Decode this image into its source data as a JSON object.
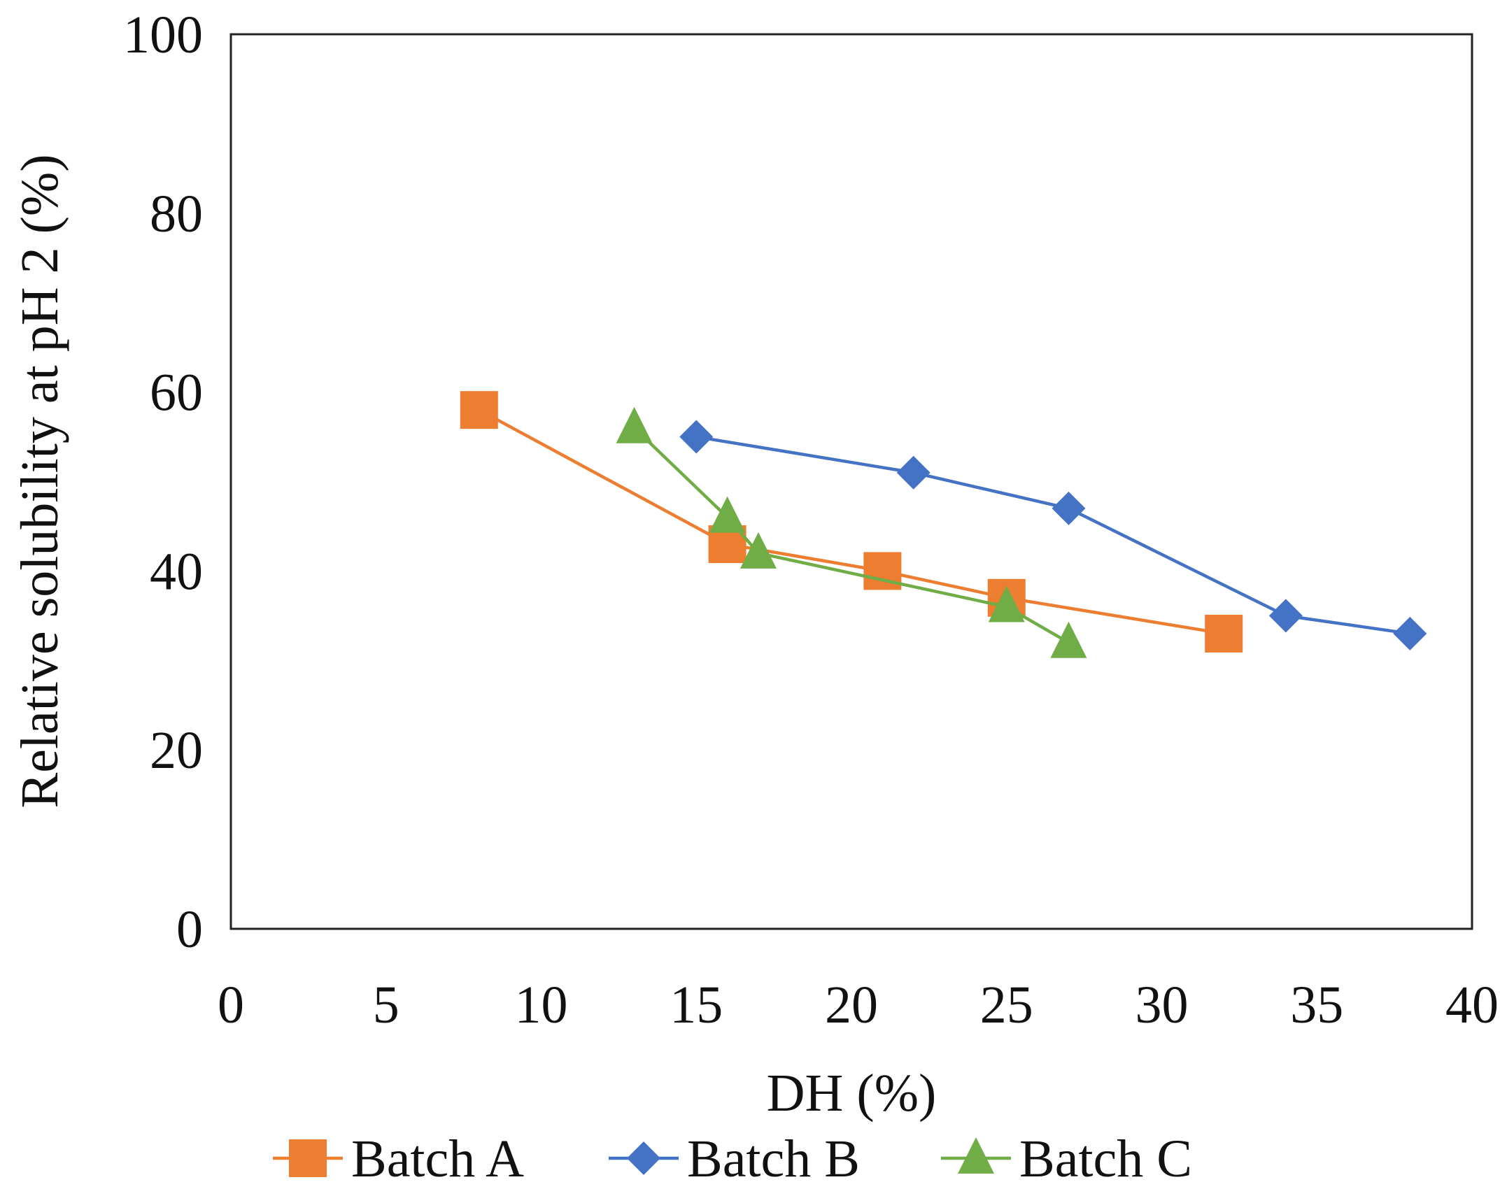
{
  "chart_data": {
    "type": "line",
    "xlabel": "DH (%)",
    "ylabel": "Relative solubility at pH 2 (%)",
    "xlim": [
      0,
      40
    ],
    "ylim": [
      0,
      100
    ],
    "x_ticks": [
      0,
      5,
      10,
      15,
      20,
      25,
      30,
      35,
      40
    ],
    "y_ticks": [
      0,
      20,
      40,
      60,
      80,
      100
    ],
    "grid": false,
    "legend_position": "bottom",
    "series": [
      {
        "name": "Batch A",
        "color": "#ED7D31",
        "marker": "square",
        "points": [
          {
            "x": 8,
            "y": 58
          },
          {
            "x": 16,
            "y": 43
          },
          {
            "x": 21,
            "y": 40
          },
          {
            "x": 25,
            "y": 37
          },
          {
            "x": 32,
            "y": 33
          }
        ]
      },
      {
        "name": "Batch B",
        "color": "#4472C4",
        "marker": "diamond",
        "points": [
          {
            "x": 15,
            "y": 55
          },
          {
            "x": 22,
            "y": 51
          },
          {
            "x": 27,
            "y": 47
          },
          {
            "x": 34,
            "y": 35
          },
          {
            "x": 38,
            "y": 33
          }
        ]
      },
      {
        "name": "Batch C",
        "color": "#70AD47",
        "marker": "triangle",
        "points": [
          {
            "x": 13,
            "y": 56
          },
          {
            "x": 16,
            "y": 46
          },
          {
            "x": 17,
            "y": 42
          },
          {
            "x": 25,
            "y": 36
          },
          {
            "x": 27,
            "y": 32
          }
        ]
      }
    ]
  }
}
